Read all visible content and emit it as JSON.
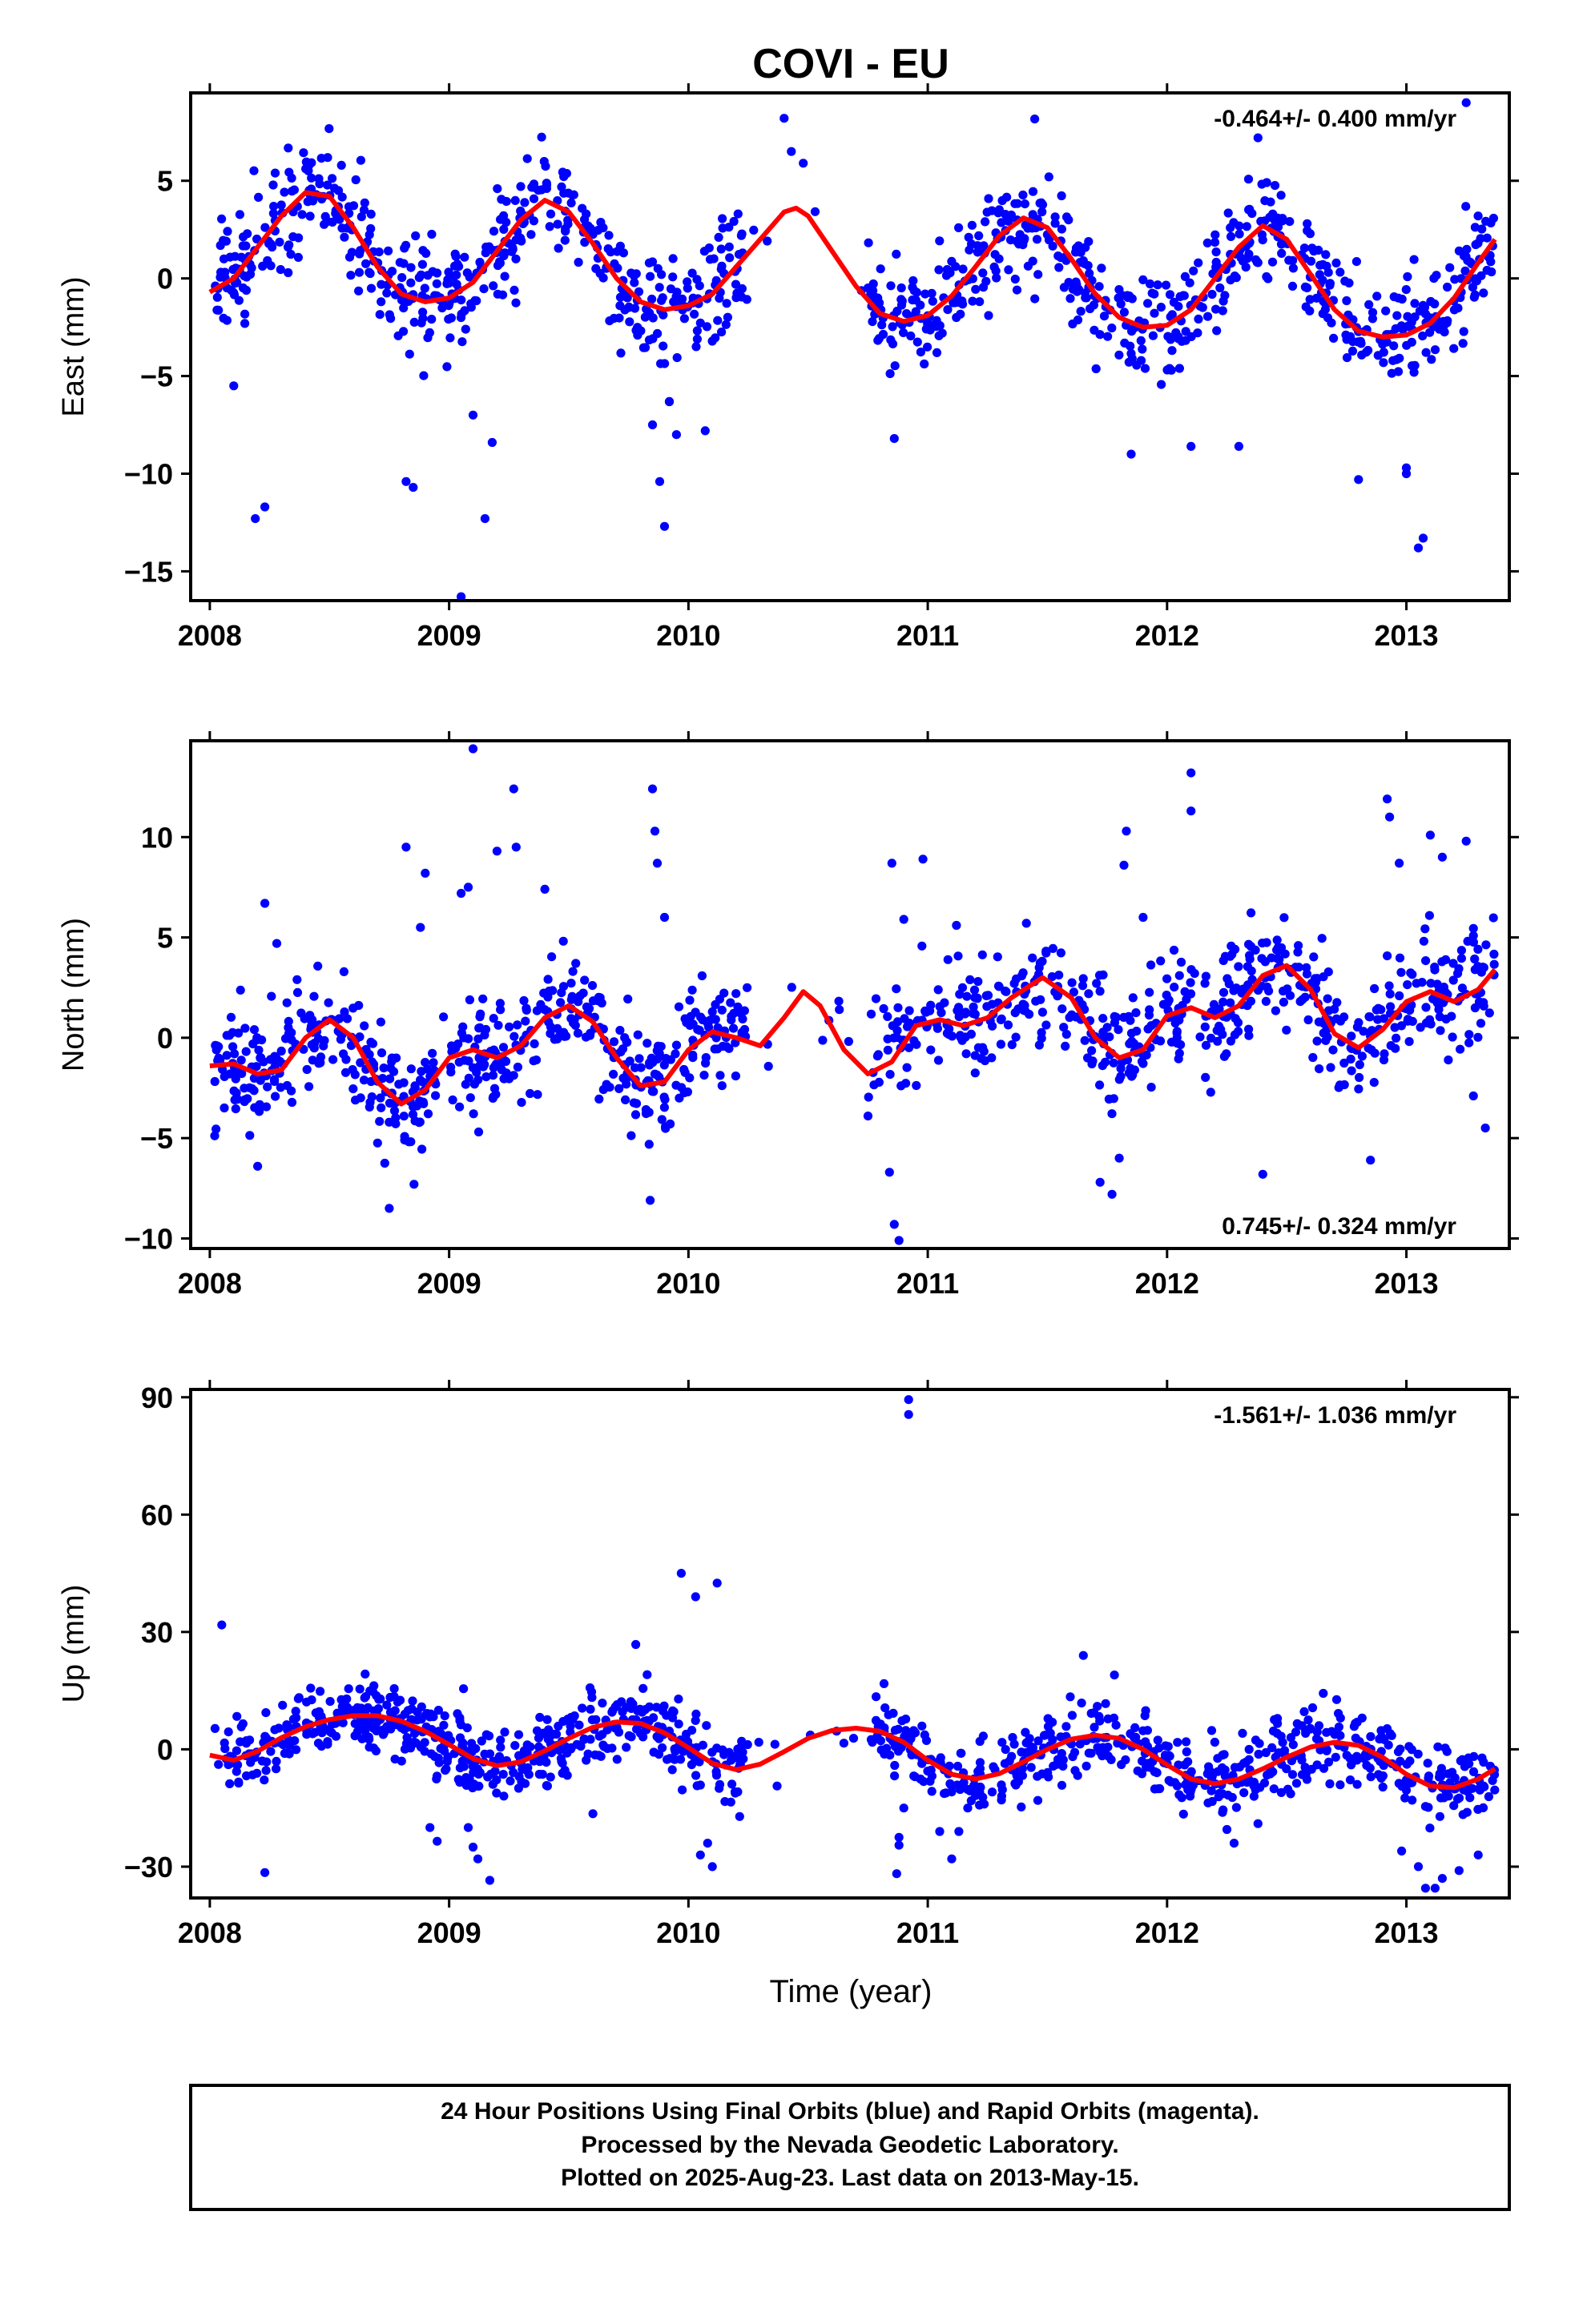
{
  "chart_data": {
    "type": "scatter",
    "title": "COVI - EU",
    "xlabel": "Time (year)",
    "x_ticks": [
      "2008",
      "2009",
      "2010",
      "2011",
      "2012",
      "2013"
    ],
    "xlim": [
      2007.92,
      2013.43
    ],
    "point_color": "#0000ff",
    "fit_color": "#ff0000",
    "panels": [
      {
        "name": "east",
        "ylabel": "East (mm)",
        "ylim": [
          -16.5,
          9.5
        ],
        "yticks": [
          5,
          0,
          -5,
          -10,
          -15
        ],
        "ytick_labels": [
          "5",
          "0",
          "−5",
          "−10",
          "−15"
        ],
        "rate": "-0.464+/- 0.400 mm/yr",
        "rate_pos": "top-right",
        "fit": [
          [
            2008.0,
            -0.7
          ],
          [
            2008.1,
            0.0
          ],
          [
            2008.2,
            1.6
          ],
          [
            2008.3,
            3.2
          ],
          [
            2008.4,
            4.4
          ],
          [
            2008.5,
            4.2
          ],
          [
            2008.6,
            2.6
          ],
          [
            2008.7,
            0.6
          ],
          [
            2008.8,
            -0.8
          ],
          [
            2008.9,
            -1.2
          ],
          [
            2009.0,
            -1.0
          ],
          [
            2009.1,
            -0.2
          ],
          [
            2009.2,
            1.4
          ],
          [
            2009.3,
            3.0
          ],
          [
            2009.4,
            4.0
          ],
          [
            2009.5,
            3.4
          ],
          [
            2009.6,
            1.8
          ],
          [
            2009.7,
            0.0
          ],
          [
            2009.8,
            -1.2
          ],
          [
            2009.9,
            -1.6
          ],
          [
            2010.0,
            -1.4
          ],
          [
            2010.1,
            -0.8
          ],
          [
            2010.2,
            0.6
          ],
          [
            2010.3,
            2.0
          ],
          [
            2010.4,
            3.4
          ],
          [
            2010.45,
            3.6
          ],
          [
            2010.5,
            3.2
          ],
          [
            2010.6,
            1.4
          ],
          [
            2010.7,
            -0.4
          ],
          [
            2010.8,
            -1.8
          ],
          [
            2010.9,
            -2.2
          ],
          [
            2011.0,
            -1.9
          ],
          [
            2011.1,
            -0.9
          ],
          [
            2011.2,
            0.6
          ],
          [
            2011.3,
            2.2
          ],
          [
            2011.4,
            3.1
          ],
          [
            2011.5,
            2.6
          ],
          [
            2011.6,
            1.0
          ],
          [
            2011.7,
            -0.8
          ],
          [
            2011.8,
            -2.0
          ],
          [
            2011.9,
            -2.5
          ],
          [
            2012.0,
            -2.4
          ],
          [
            2012.1,
            -1.6
          ],
          [
            2012.2,
            0.0
          ],
          [
            2012.3,
            1.6
          ],
          [
            2012.4,
            2.7
          ],
          [
            2012.5,
            2.0
          ],
          [
            2012.6,
            0.2
          ],
          [
            2012.7,
            -1.6
          ],
          [
            2012.8,
            -2.7
          ],
          [
            2012.9,
            -3.0
          ],
          [
            2013.0,
            -2.9
          ],
          [
            2013.1,
            -2.3
          ],
          [
            2013.2,
            -1.0
          ],
          [
            2013.3,
            0.8
          ],
          [
            2013.37,
            2.0
          ]
        ],
        "amplitude": 3.4,
        "scatter_sd": 1.4,
        "outliers": [
          [
            2008.19,
            -12.3
          ],
          [
            2008.23,
            -11.7
          ],
          [
            2008.82,
            -10.4
          ],
          [
            2008.85,
            -10.7
          ],
          [
            2009.05,
            -16.3
          ],
          [
            2009.15,
            -12.3
          ],
          [
            2009.88,
            -10.4
          ],
          [
            2009.9,
            -12.7
          ],
          [
            2009.85,
            -7.5
          ],
          [
            2009.92,
            -6.3
          ],
          [
            2009.95,
            -8.0
          ],
          [
            2010.07,
            -7.8
          ],
          [
            2010.4,
            8.2
          ],
          [
            2010.43,
            6.5
          ],
          [
            2010.48,
            5.9
          ],
          [
            2012.38,
            7.2
          ],
          [
            2013.05,
            -13.8
          ],
          [
            2013.07,
            -13.3
          ],
          [
            2013.0,
            -10.0
          ],
          [
            2013.25,
            9.0
          ],
          [
            2008.1,
            -5.5
          ],
          [
            2009.1,
            -7.0
          ],
          [
            2009.18,
            -8.4
          ],
          [
            2011.85,
            -9.0
          ],
          [
            2012.1,
            -8.6
          ],
          [
            2012.3,
            -8.6
          ],
          [
            2010.86,
            -8.2
          ],
          [
            2012.8,
            -10.3
          ],
          [
            2013.0,
            -9.7
          ]
        ]
      },
      {
        "name": "north",
        "ylabel": "North (mm)",
        "ylim": [
          -10.5,
          14.8
        ],
        "yticks": [
          10,
          5,
          0,
          -5,
          -10
        ],
        "ytick_labels": [
          "10",
          "5",
          "0",
          "−5",
          "−10"
        ],
        "rate": "0.745+/- 0.324 mm/yr",
        "rate_pos": "bottom-right",
        "fit": [
          [
            2008.0,
            -1.4
          ],
          [
            2008.1,
            -1.3
          ],
          [
            2008.2,
            -1.8
          ],
          [
            2008.3,
            -1.6
          ],
          [
            2008.4,
            0.0
          ],
          [
            2008.5,
            0.9
          ],
          [
            2008.6,
            0.0
          ],
          [
            2008.7,
            -2.2
          ],
          [
            2008.8,
            -3.3
          ],
          [
            2008.9,
            -2.6
          ],
          [
            2009.0,
            -1.0
          ],
          [
            2009.1,
            -0.6
          ],
          [
            2009.2,
            -1.0
          ],
          [
            2009.3,
            -0.4
          ],
          [
            2009.4,
            1.0
          ],
          [
            2009.5,
            1.6
          ],
          [
            2009.6,
            0.8
          ],
          [
            2009.7,
            -1.0
          ],
          [
            2009.8,
            -2.4
          ],
          [
            2009.9,
            -2.2
          ],
          [
            2010.0,
            -0.6
          ],
          [
            2010.1,
            0.3
          ],
          [
            2010.2,
            0.0
          ],
          [
            2010.3,
            -0.4
          ],
          [
            2010.4,
            1.0
          ],
          [
            2010.48,
            2.3
          ],
          [
            2010.55,
            1.6
          ],
          [
            2010.65,
            -0.6
          ],
          [
            2010.75,
            -1.8
          ],
          [
            2010.85,
            -1.2
          ],
          [
            2010.95,
            0.6
          ],
          [
            2011.05,
            0.9
          ],
          [
            2011.15,
            0.6
          ],
          [
            2011.25,
            1.0
          ],
          [
            2011.35,
            2.0
          ],
          [
            2011.48,
            3.0
          ],
          [
            2011.6,
            2.0
          ],
          [
            2011.7,
            0.0
          ],
          [
            2011.8,
            -1.0
          ],
          [
            2011.9,
            -0.6
          ],
          [
            2012.0,
            1.1
          ],
          [
            2012.1,
            1.5
          ],
          [
            2012.2,
            1.0
          ],
          [
            2012.3,
            1.6
          ],
          [
            2012.4,
            3.1
          ],
          [
            2012.5,
            3.6
          ],
          [
            2012.6,
            2.4
          ],
          [
            2012.7,
            0.2
          ],
          [
            2012.8,
            -0.5
          ],
          [
            2012.9,
            0.4
          ],
          [
            2013.0,
            1.8
          ],
          [
            2013.1,
            2.3
          ],
          [
            2013.2,
            1.8
          ],
          [
            2013.3,
            2.4
          ],
          [
            2013.37,
            3.4
          ]
        ],
        "amplitude": 2.6,
        "scatter_sd": 1.4,
        "outliers": [
          [
            2008.23,
            6.7
          ],
          [
            2008.28,
            4.7
          ],
          [
            2008.2,
            -6.4
          ],
          [
            2008.75,
            -8.5
          ],
          [
            2008.82,
            9.5
          ],
          [
            2008.9,
            8.2
          ],
          [
            2008.88,
            5.5
          ],
          [
            2009.05,
            7.2
          ],
          [
            2009.08,
            7.5
          ],
          [
            2009.1,
            14.4
          ],
          [
            2009.2,
            9.3
          ],
          [
            2009.27,
            12.4
          ],
          [
            2009.28,
            9.5
          ],
          [
            2009.4,
            7.4
          ],
          [
            2009.85,
            12.4
          ],
          [
            2009.86,
            10.3
          ],
          [
            2009.87,
            8.7
          ],
          [
            2009.84,
            -8.1
          ],
          [
            2009.9,
            6.0
          ],
          [
            2010.85,
            8.7
          ],
          [
            2010.98,
            8.9
          ],
          [
            2010.84,
            -6.7
          ],
          [
            2010.86,
            -9.3
          ],
          [
            2010.88,
            -10.1
          ],
          [
            2010.9,
            5.9
          ],
          [
            2011.12,
            5.6
          ],
          [
            2011.72,
            -7.2
          ],
          [
            2011.77,
            -7.8
          ],
          [
            2011.8,
            -6.0
          ],
          [
            2011.82,
            8.6
          ],
          [
            2011.83,
            10.3
          ],
          [
            2011.9,
            6.0
          ],
          [
            2012.1,
            13.2
          ],
          [
            2012.1,
            11.3
          ],
          [
            2012.4,
            -6.8
          ],
          [
            2012.85,
            -6.1
          ],
          [
            2012.92,
            11.9
          ],
          [
            2012.93,
            11.0
          ],
          [
            2012.97,
            8.7
          ],
          [
            2013.1,
            10.1
          ],
          [
            2013.15,
            9.0
          ],
          [
            2013.25,
            9.8
          ],
          [
            2013.28,
            -2.9
          ],
          [
            2013.33,
            -4.5
          ]
        ]
      },
      {
        "name": "up",
        "ylabel": "Up (mm)",
        "ylim": [
          -38,
          92
        ],
        "yticks": [
          90,
          60,
          30,
          0,
          -30
        ],
        "ytick_labels": [
          "90",
          "60",
          "30",
          "0",
          "−30"
        ],
        "rate": "-1.561+/- 1.036 mm/yr",
        "rate_pos": "top-right",
        "fit": [
          [
            2008.0,
            -1.5
          ],
          [
            2008.1,
            -2.8
          ],
          [
            2008.2,
            -0.5
          ],
          [
            2008.3,
            3.0
          ],
          [
            2008.4,
            5.8
          ],
          [
            2008.5,
            7.6
          ],
          [
            2008.6,
            8.6
          ],
          [
            2008.7,
            8.6
          ],
          [
            2008.8,
            7.2
          ],
          [
            2008.9,
            4.6
          ],
          [
            2009.0,
            1.2
          ],
          [
            2009.1,
            -2.4
          ],
          [
            2009.2,
            -4.2
          ],
          [
            2009.3,
            -3.2
          ],
          [
            2009.4,
            -0.4
          ],
          [
            2009.5,
            2.8
          ],
          [
            2009.6,
            5.6
          ],
          [
            2009.7,
            7.0
          ],
          [
            2009.8,
            6.6
          ],
          [
            2009.9,
            4.2
          ],
          [
            2010.0,
            0.4
          ],
          [
            2010.1,
            -3.6
          ],
          [
            2010.2,
            -5.2
          ],
          [
            2010.3,
            -3.8
          ],
          [
            2010.4,
            -0.6
          ],
          [
            2010.5,
            2.8
          ],
          [
            2010.6,
            4.8
          ],
          [
            2010.7,
            5.4
          ],
          [
            2010.8,
            4.6
          ],
          [
            2010.9,
            1.8
          ],
          [
            2011.0,
            -2.8
          ],
          [
            2011.1,
            -6.4
          ],
          [
            2011.2,
            -7.6
          ],
          [
            2011.3,
            -6.2
          ],
          [
            2011.4,
            -3.2
          ],
          [
            2011.5,
            0.0
          ],
          [
            2011.6,
            2.6
          ],
          [
            2011.7,
            3.6
          ],
          [
            2011.8,
            2.8
          ],
          [
            2011.9,
            0.0
          ],
          [
            2012.0,
            -4.0
          ],
          [
            2012.1,
            -7.6
          ],
          [
            2012.2,
            -8.8
          ],
          [
            2012.3,
            -7.6
          ],
          [
            2012.4,
            -5.0
          ],
          [
            2012.5,
            -2.0
          ],
          [
            2012.6,
            0.6
          ],
          [
            2012.7,
            1.8
          ],
          [
            2012.8,
            1.0
          ],
          [
            2012.9,
            -2.0
          ],
          [
            2013.0,
            -6.4
          ],
          [
            2013.1,
            -9.4
          ],
          [
            2013.2,
            -9.8
          ],
          [
            2013.3,
            -7.6
          ],
          [
            2013.37,
            -5.0
          ]
        ],
        "amplitude": 6.5,
        "scatter_sd": 4.6,
        "outliers": [
          [
            2008.05,
            31.8
          ],
          [
            2008.23,
            -31.5
          ],
          [
            2008.92,
            -20.0
          ],
          [
            2008.95,
            -23.5
          ],
          [
            2009.08,
            -20.0
          ],
          [
            2009.1,
            -25.0
          ],
          [
            2009.12,
            -28.0
          ],
          [
            2009.17,
            -33.5
          ],
          [
            2009.06,
            15.5
          ],
          [
            2009.78,
            26.8
          ],
          [
            2009.97,
            45.0
          ],
          [
            2010.03,
            39.0
          ],
          [
            2010.12,
            42.5
          ],
          [
            2010.1,
            -30.0
          ],
          [
            2010.05,
            -27.0
          ],
          [
            2010.08,
            -24.0
          ],
          [
            2010.87,
            -31.8
          ],
          [
            2010.88,
            -24.5
          ],
          [
            2010.88,
            -22.5
          ],
          [
            2010.9,
            -15.0
          ],
          [
            2010.92,
            89.4
          ],
          [
            2010.92,
            85.6
          ],
          [
            2011.05,
            -21.0
          ],
          [
            2011.1,
            -28.0
          ],
          [
            2011.13,
            -21.0
          ],
          [
            2011.65,
            24.0
          ],
          [
            2011.78,
            19.0
          ],
          [
            2012.25,
            -20.5
          ],
          [
            2012.28,
            -24.0
          ],
          [
            2012.38,
            -19.0
          ],
          [
            2012.98,
            -26.0
          ],
          [
            2013.05,
            -30.0
          ],
          [
            2013.08,
            -35.5
          ],
          [
            2013.12,
            -35.5
          ],
          [
            2013.15,
            -33.0
          ],
          [
            2013.22,
            -31.0
          ],
          [
            2013.3,
            -27.0
          ]
        ]
      }
    ],
    "n_points_per_panel": 1200,
    "gap": [
      2010.25,
      2010.75
    ]
  },
  "footer": {
    "line1": "24 Hour Positions Using Final Orbits (blue) and Rapid Orbits (magenta).",
    "line2": "Processed by the Nevada Geodetic Laboratory.",
    "line3": "Plotted on 2025-Aug-23. Last data on 2013-May-15."
  }
}
